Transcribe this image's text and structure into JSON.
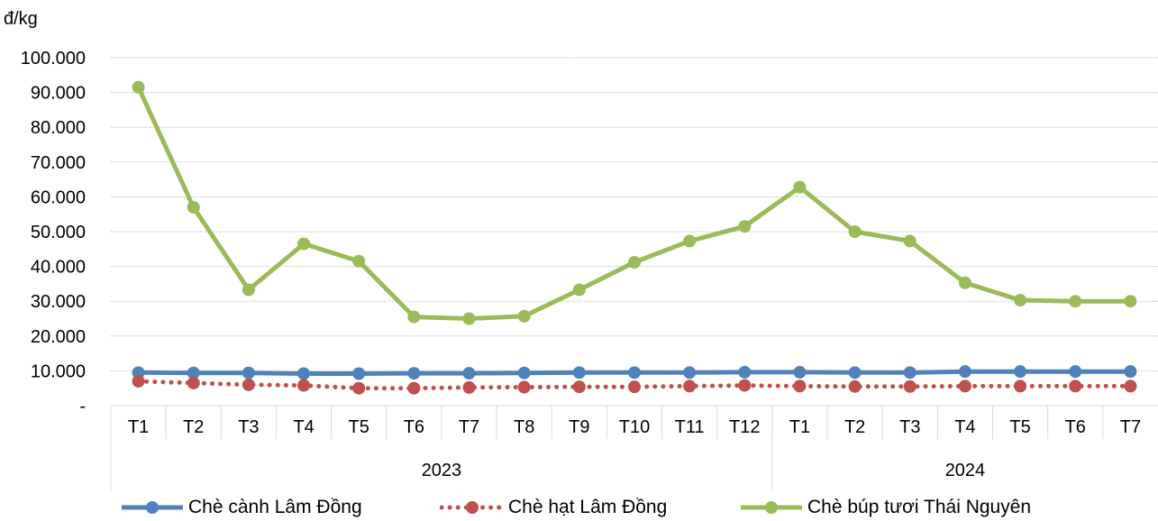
{
  "chart_data": {
    "type": "line",
    "ylabel": "đ/kg",
    "ylim": [
      0,
      100000
    ],
    "y_ticks": [
      "-",
      "10.000",
      "20.000",
      "30.000",
      "40.000",
      "50.000",
      "60.000",
      "70.000",
      "80.000",
      "90.000",
      "100.000"
    ],
    "categories": [
      "T1",
      "T2",
      "T3",
      "T4",
      "T5",
      "T6",
      "T7",
      "T8",
      "T9",
      "T10",
      "T11",
      "T12",
      "T1",
      "T2",
      "T3",
      "T4",
      "T5",
      "T6",
      "T7"
    ],
    "year_groups": [
      {
        "label": "2023",
        "count": 12
      },
      {
        "label": "2024",
        "count": 7
      }
    ],
    "grid": true,
    "legend_position": "bottom",
    "series": [
      {
        "name": "Chè cành Lâm Đồng",
        "color": "#4F81BD",
        "style": "solid",
        "values": [
          9500,
          9400,
          9400,
          9200,
          9200,
          9300,
          9300,
          9400,
          9500,
          9500,
          9500,
          9600,
          9600,
          9500,
          9500,
          9800,
          9800,
          9800,
          9800
        ]
      },
      {
        "name": "Chè hạt Lâm Đồng",
        "color": "#C0504D",
        "style": "dotted",
        "values": [
          7000,
          6500,
          6000,
          5800,
          5000,
          5000,
          5200,
          5300,
          5400,
          5400,
          5600,
          5800,
          5600,
          5500,
          5500,
          5600,
          5600,
          5600,
          5600
        ]
      },
      {
        "name": "Chè búp tươi Thái Nguyên",
        "color": "#9BBB59",
        "style": "solid",
        "values": [
          91500,
          57000,
          33300,
          46500,
          41500,
          25500,
          25000,
          25700,
          33300,
          41200,
          47300,
          51500,
          62800,
          50000,
          47300,
          35300,
          30300,
          30000,
          30000
        ]
      }
    ]
  }
}
